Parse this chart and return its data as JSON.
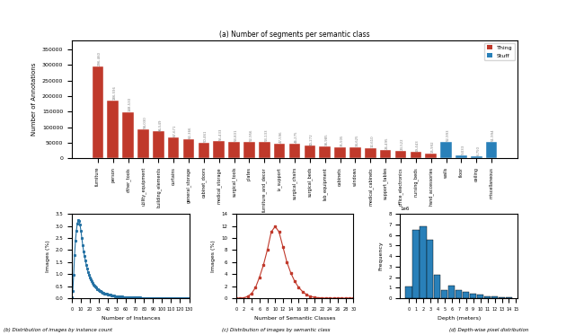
{
  "bar_categories": [
    "furniture",
    "person",
    "other_tools",
    "utility_equipment",
    "building_elements",
    "curtains",
    "general_storage",
    "cabinet_doors",
    "medical_storage",
    "surgical_tools",
    "plates",
    "furniture_and_decor",
    "iv_support",
    "surgical_chairs",
    "surgical_beds",
    "lab_equipment",
    "cabinets",
    "windows",
    "medical_cabinets",
    "support_tables",
    "office_electronics",
    "nursing_beds",
    "hand_accessories",
    "walls",
    "floor",
    "ceiling",
    "miscellaneous"
  ],
  "bar_values": [
    296460,
    186596,
    148530,
    94030,
    86549,
    67671,
    62366,
    50461,
    55433,
    53831,
    52956,
    53133,
    47596,
    46275,
    40272,
    38985,
    35505,
    34625,
    32610,
    26495,
    23522,
    19443,
    15992,
    52993,
    9033,
    6750,
    51994
  ],
  "bar_value_labels": [
    "296,460",
    "186,596",
    "148,530",
    "94,030",
    "86,549",
    "67,671",
    "62,366",
    "50,461",
    "55,433",
    "53,831",
    "52,956",
    "53,133",
    "47,596",
    "46,275",
    "40,272",
    "38,985",
    "35,505",
    "34,625",
    "32,610",
    "26,495",
    "23,522",
    "19,443",
    "15,992",
    "52,993",
    "9,033",
    "6,750",
    "51,994"
  ],
  "bar_colors_type": [
    "thing",
    "thing",
    "thing",
    "thing",
    "thing",
    "thing",
    "thing",
    "thing",
    "thing",
    "thing",
    "thing",
    "thing",
    "thing",
    "thing",
    "thing",
    "thing",
    "thing",
    "thing",
    "thing",
    "thing",
    "thing",
    "thing",
    "thing",
    "stuff",
    "stuff",
    "stuff",
    "stuff"
  ],
  "thing_color": "#c0392b",
  "stuff_color": "#2980b9",
  "top_title": "(a) Number of segments per semantic class",
  "bar_xlabel": "",
  "bar_ylabel": "Number of Annotations",
  "plot_b_x": [
    0,
    1,
    2,
    3,
    4,
    5,
    6,
    7,
    8,
    9,
    10,
    11,
    12,
    13,
    14,
    15,
    16,
    17,
    18,
    19,
    20,
    21,
    22,
    23,
    24,
    25,
    26,
    27,
    28,
    29,
    30,
    31,
    32,
    33,
    34,
    35,
    36,
    37,
    38,
    39,
    40,
    41,
    42,
    43,
    44,
    45,
    46,
    47,
    48,
    49,
    50,
    51,
    52,
    53,
    54,
    55,
    56,
    57,
    58,
    59,
    60,
    61,
    62,
    63,
    64,
    65,
    66,
    67,
    68,
    69,
    70,
    71,
    72,
    73,
    74,
    75,
    76,
    77,
    78,
    79,
    80,
    81,
    82,
    83,
    84,
    85,
    86,
    87,
    88,
    89,
    90,
    91,
    92,
    93,
    94,
    95,
    96,
    97,
    98,
    99,
    100,
    101,
    102,
    103,
    104,
    105,
    106,
    107,
    108,
    109,
    110,
    111,
    112,
    113,
    114,
    115,
    116,
    117,
    118,
    119,
    120,
    121,
    122,
    123,
    124,
    125,
    126,
    127,
    128,
    129,
    130
  ],
  "plot_b_y": [
    0.05,
    0.28,
    0.98,
    1.8,
    2.4,
    2.8,
    3.1,
    3.25,
    3.2,
    3.05,
    2.8,
    2.5,
    2.2,
    1.95,
    1.75,
    1.55,
    1.38,
    1.22,
    1.08,
    0.97,
    0.87,
    0.78,
    0.7,
    0.63,
    0.57,
    0.52,
    0.47,
    0.43,
    0.39,
    0.36,
    0.33,
    0.3,
    0.28,
    0.26,
    0.24,
    0.22,
    0.2,
    0.19,
    0.18,
    0.17,
    0.16,
    0.15,
    0.14,
    0.13,
    0.12,
    0.11,
    0.1,
    0.1,
    0.09,
    0.09,
    0.08,
    0.08,
    0.07,
    0.07,
    0.06,
    0.06,
    0.06,
    0.05,
    0.05,
    0.05,
    0.04,
    0.04,
    0.04,
    0.04,
    0.03,
    0.03,
    0.03,
    0.03,
    0.03,
    0.02,
    0.02,
    0.02,
    0.02,
    0.02,
    0.02,
    0.02,
    0.02,
    0.01,
    0.01,
    0.01,
    0.01,
    0.01,
    0.01,
    0.01,
    0.01,
    0.01,
    0.01,
    0.01,
    0.01,
    0.01,
    0.01,
    0.0,
    0.0,
    0.0,
    0.0,
    0.0,
    0.0,
    0.0,
    0.0,
    0.0,
    0.0,
    0.0,
    0.0,
    0.0,
    0.0,
    0.0,
    0.0,
    0.0,
    0.0,
    0.0,
    0.0,
    0.0,
    0.0,
    0.0,
    0.0,
    0.0,
    0.0,
    0.0,
    0.0,
    0.0,
    0.0,
    0.0,
    0.0,
    0.0,
    0.0,
    0.0,
    0.0,
    0.0,
    0.0,
    0.0,
    0.0
  ],
  "plot_b_xlabel": "Number of Instances",
  "plot_b_ylabel": "Images (%)",
  "plot_b_title": "(b) Distribution of images by instance count",
  "plot_c_x": [
    0,
    1,
    2,
    3,
    4,
    5,
    6,
    7,
    8,
    9,
    10,
    11,
    12,
    13,
    14,
    15,
    16,
    17,
    18,
    19,
    20,
    21,
    22,
    23,
    24,
    25,
    26,
    27,
    28,
    29,
    30
  ],
  "plot_c_y": [
    0.0,
    0.0,
    0.05,
    0.3,
    0.8,
    1.8,
    3.5,
    5.5,
    8.0,
    11.0,
    11.9,
    11.0,
    8.5,
    6.0,
    4.2,
    2.8,
    1.8,
    1.1,
    0.6,
    0.3,
    0.15,
    0.07,
    0.03,
    0.01,
    0.0,
    0.0,
    0.0,
    0.0,
    0.0,
    0.0,
    0.0
  ],
  "plot_c_xlabel": "Number of Semantic Classes",
  "plot_c_ylabel": "Images (%)",
  "plot_c_title": "(c) Distribution of images by semantic class",
  "depth_bins": [
    0,
    1,
    2,
    3,
    4,
    5,
    6,
    7,
    8,
    9,
    10,
    11,
    12,
    13,
    14,
    15
  ],
  "depth_values": [
    1100000,
    6500000,
    6800000,
    5500000,
    2200000,
    800000,
    1200000,
    800000,
    600000,
    400000,
    300000,
    200000,
    150000,
    100000,
    80000
  ],
  "depth_xlabel": "Depth (meters)",
  "depth_ylabel": "Frequency",
  "depth_title": "(d) Depth-wise pixel distribution",
  "depth_color": "#2980b9"
}
